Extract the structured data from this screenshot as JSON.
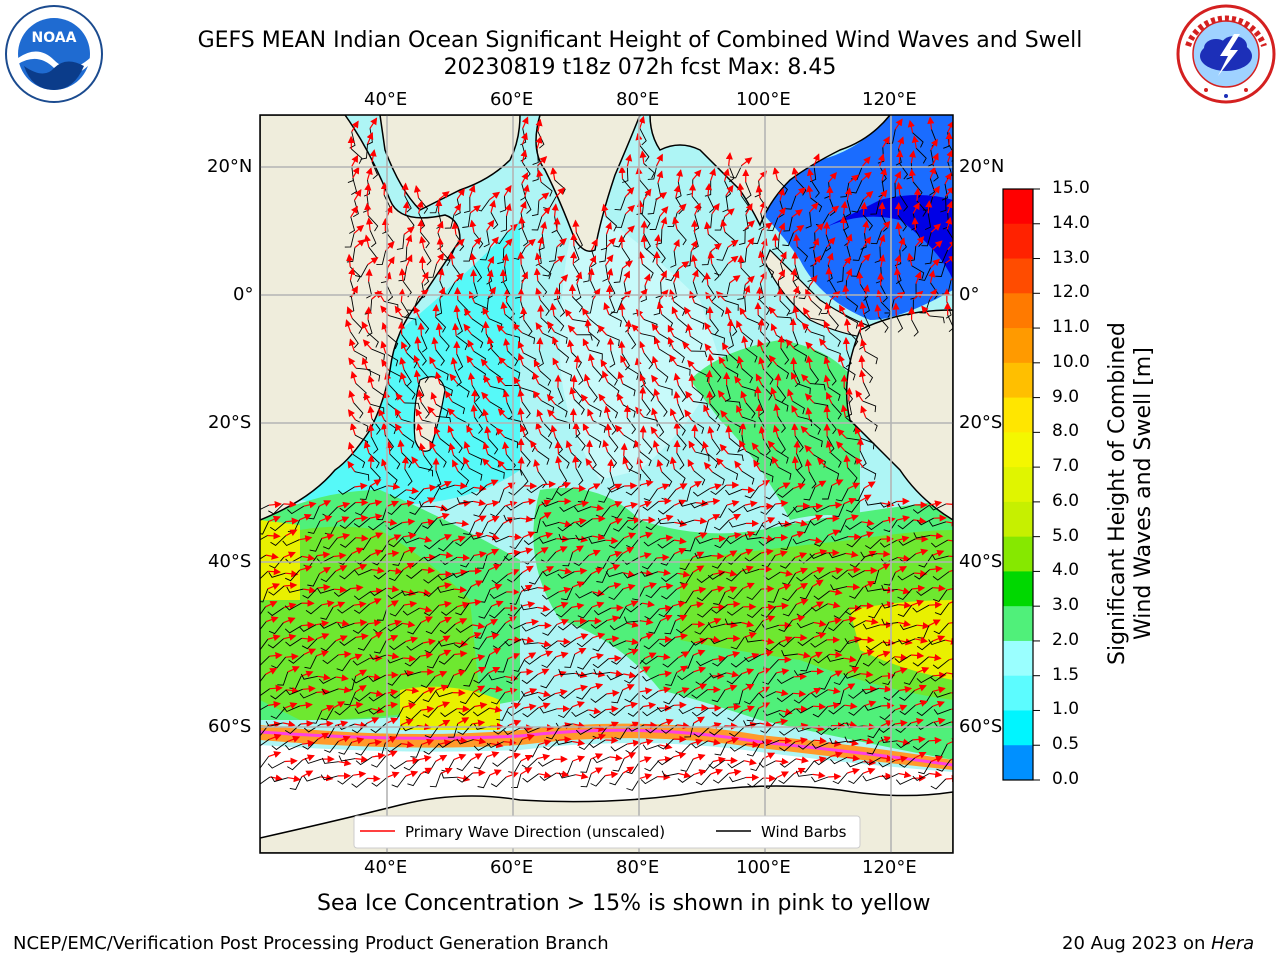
{
  "header": {
    "title_line1": "GEFS MEAN Indian Ocean Significant Height of Combined Wind Waves and Swell",
    "title_line2": "20230819 t18z 072h fcst   Max: 8.45"
  },
  "logos": {
    "noaa_text": "NOAA",
    "nws_ring_text": "NATIONAL WEATHER SERVICE",
    "noaa_ring_text": "NATIONAL OCEANIC AND ATMOSPHERIC ADMINISTRATION · U.S. DEPARTMENT OF COMMERCE"
  },
  "map": {
    "lon_ticks": [
      "40°E",
      "60°E",
      "80°E",
      "100°E",
      "120°E"
    ],
    "lat_ticks": [
      "20°N",
      "0°",
      "20°S",
      "40°S",
      "60°S"
    ],
    "legend": {
      "wave_direction": "Primary Wave Direction (unscaled)",
      "wind_barbs": "Wind Barbs"
    },
    "colors": {
      "land": "#efeddc",
      "ocean_low": "#aef5f5",
      "ocean_mid": "#4dfaf8",
      "green": "#50f07a",
      "bright_green": "#6ee830",
      "yellow_green": "#ccf000",
      "blue": "#1a6cff",
      "deep_blue": "#0000e6",
      "ice": "#ff9a2a",
      "arrow": "#ff0000",
      "barb": "#000000"
    }
  },
  "colorbar": {
    "label_line1": "Significant Height of Combined",
    "label_line2": "Wind Waves and Swell [m]",
    "ticks": [
      "15.0",
      "14.0",
      "13.0",
      "12.0",
      "11.0",
      "10.0",
      "9.0",
      "8.0",
      "7.0",
      "6.0",
      "5.0",
      "4.0",
      "3.0",
      "2.0",
      "1.5",
      "1.0",
      "0.5",
      "0.0"
    ],
    "colors": [
      "#ff0000",
      "#ff2200",
      "#ff4c00",
      "#ff7a00",
      "#ff9a00",
      "#ffbf00",
      "#ffe600",
      "#f4f700",
      "#e0f500",
      "#c6f000",
      "#86e800",
      "#00d800",
      "#50f07a",
      "#9affff",
      "#5cfcff",
      "#00f5ff",
      "#0090ff",
      "#004cff",
      "#0000ff"
    ]
  },
  "footer": {
    "caption": "Sea Ice Concentration > 15% is shown in pink to yellow",
    "left": "NCEP/EMC/Verification Post Processing Product Generation Branch",
    "right_date": "20 Aug 2023 on ",
    "right_machine": "Hera"
  }
}
